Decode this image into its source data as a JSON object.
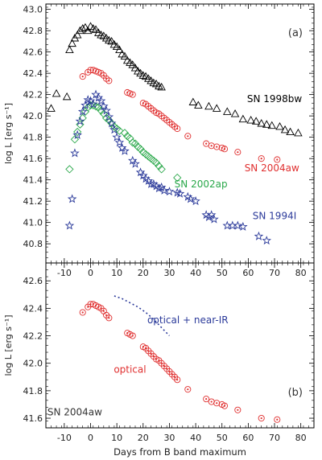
{
  "chart_data": [
    {
      "panel": "(a)",
      "type": "scatter",
      "xlim": [
        -17,
        85
      ],
      "ylim": [
        40.62,
        43.05
      ],
      "yticks": [
        40.8,
        41.0,
        41.2,
        41.4,
        41.6,
        41.8,
        42.0,
        42.2,
        42.4,
        42.6,
        42.8,
        43.0
      ],
      "xticks": [
        -10,
        0,
        10,
        20,
        30,
        40,
        50,
        60,
        70,
        80
      ],
      "ylabel": "log L [erg s⁻¹]",
      "panel_label": "(a)",
      "series": [
        {
          "name": "SN 1998bw",
          "marker": "triangle",
          "color": "#000000",
          "x": [
            -15,
            -13,
            -9,
            -8,
            -7,
            -6,
            -5,
            -4,
            -3,
            -2,
            -1,
            0,
            1,
            2,
            3,
            4,
            5,
            6,
            7,
            8,
            9,
            10,
            11,
            12,
            13,
            14,
            15,
            16,
            17,
            18,
            19,
            20,
            21,
            22,
            23,
            24,
            25,
            26,
            27,
            39,
            41,
            45,
            48,
            52,
            55,
            58,
            61,
            63,
            65,
            67,
            69,
            72,
            74,
            76,
            79
          ],
          "y": [
            42.07,
            42.21,
            42.18,
            42.62,
            42.68,
            42.73,
            42.76,
            42.8,
            42.82,
            42.83,
            42.8,
            42.84,
            42.82,
            42.81,
            42.78,
            42.76,
            42.75,
            42.73,
            42.71,
            42.7,
            42.67,
            42.65,
            42.62,
            42.58,
            42.56,
            42.52,
            42.5,
            42.48,
            42.45,
            42.42,
            42.4,
            42.38,
            42.37,
            42.35,
            42.33,
            42.31,
            42.3,
            42.28,
            42.27,
            42.13,
            42.1,
            42.09,
            42.07,
            42.04,
            42.02,
            41.97,
            41.96,
            41.95,
            41.93,
            41.92,
            41.91,
            41.9,
            41.87,
            41.85,
            41.84
          ]
        },
        {
          "name": "SN 2004aw",
          "marker": "circle-dot",
          "color": "#e03030",
          "x": [
            -3,
            -1,
            0,
            1,
            2,
            3,
            4,
            5,
            6,
            7,
            14,
            15,
            16,
            20,
            21,
            22,
            23,
            24,
            25,
            26,
            27,
            28,
            29,
            30,
            31,
            32,
            33,
            37,
            44,
            46,
            48,
            50,
            51,
            56,
            65,
            71
          ],
          "y": [
            42.37,
            42.41,
            42.43,
            42.43,
            42.42,
            42.41,
            42.4,
            42.38,
            42.35,
            42.33,
            42.22,
            42.21,
            42.2,
            42.12,
            42.11,
            42.09,
            42.07,
            42.05,
            42.03,
            42.02,
            42.0,
            41.98,
            41.96,
            41.94,
            41.92,
            41.9,
            41.88,
            41.81,
            41.74,
            41.72,
            41.71,
            41.7,
            41.69,
            41.66,
            41.6,
            41.59
          ]
        },
        {
          "name": "SN 2002ap",
          "marker": "diamond",
          "color": "#2aa84a",
          "x": [
            -8,
            -6,
            -5,
            -4,
            -3,
            -2,
            -1,
            0,
            1,
            2,
            3,
            4,
            5,
            6,
            7,
            8,
            9,
            10,
            11,
            13,
            14,
            15,
            16,
            17,
            18,
            19,
            20,
            21,
            22,
            23,
            24,
            25,
            26,
            27,
            33
          ],
          "y": [
            41.5,
            41.78,
            41.85,
            41.92,
            41.98,
            42.04,
            42.08,
            42.1,
            42.1,
            42.09,
            42.08,
            42.05,
            42.02,
            41.98,
            41.96,
            41.93,
            41.9,
            41.88,
            41.86,
            41.84,
            41.81,
            41.79,
            41.75,
            41.74,
            41.71,
            41.69,
            41.66,
            41.64,
            41.62,
            41.6,
            41.58,
            41.56,
            41.53,
            41.5,
            41.42
          ]
        },
        {
          "name": "SN 1994I",
          "marker": "star",
          "color": "#2b3a9a",
          "x": [
            -8,
            -7,
            -6,
            -5,
            -4,
            -3,
            -2,
            -1,
            0,
            1,
            2,
            3,
            4,
            5,
            6,
            7,
            8,
            9,
            10,
            11,
            12,
            13,
            16,
            17,
            19,
            20,
            21,
            22,
            23,
            24,
            25,
            26,
            27,
            28,
            30,
            33,
            34,
            37,
            38,
            40,
            44,
            45,
            46,
            47,
            52,
            54,
            56,
            58,
            64,
            67
          ],
          "y": [
            40.97,
            41.22,
            41.65,
            41.82,
            41.95,
            42.04,
            42.1,
            42.15,
            42.14,
            42.11,
            42.2,
            42.17,
            42.14,
            42.09,
            42.05,
            41.99,
            41.93,
            41.87,
            41.8,
            41.75,
            41.7,
            41.67,
            41.58,
            41.55,
            41.47,
            41.44,
            41.41,
            41.39,
            41.36,
            41.36,
            41.34,
            41.32,
            41.33,
            41.3,
            41.29,
            41.28,
            41.27,
            41.24,
            41.22,
            41.2,
            41.07,
            41.05,
            41.07,
            41.03,
            40.97,
            40.97,
            40.97,
            40.96,
            40.87,
            40.83
          ]
        }
      ],
      "annotations": [
        {
          "text": "SN 1998bw",
          "x": 70,
          "y": 42.13,
          "color": "#000000"
        },
        {
          "text": "SN 2004aw",
          "x": 69,
          "y": 41.48,
          "color": "#e03030"
        },
        {
          "text": "SN 2002ap",
          "x": 42,
          "y": 41.33,
          "color": "#2aa84a"
        },
        {
          "text": "SN 1994I",
          "x": 70,
          "y": 41.03,
          "color": "#2b3a9a"
        }
      ]
    },
    {
      "panel": "(b)",
      "type": "scatter",
      "xlim": [
        -17,
        85
      ],
      "ylim": [
        41.53,
        42.73
      ],
      "yticks": [
        41.6,
        41.8,
        42.0,
        42.2,
        42.4,
        42.6
      ],
      "xticks": [
        -10,
        0,
        10,
        20,
        30,
        40,
        50,
        60,
        70,
        80
      ],
      "xlabel": "Days from B band maximum",
      "ylabel": "log L [erg s⁻¹]",
      "panel_label": "(b)",
      "series": [
        {
          "name": "optical",
          "marker": "circle-dot",
          "color": "#e03030",
          "x": [
            -3,
            -1,
            0,
            1,
            2,
            3,
            4,
            5,
            6,
            7,
            14,
            15,
            16,
            20,
            21,
            22,
            23,
            24,
            25,
            26,
            27,
            28,
            29,
            30,
            31,
            32,
            33,
            37,
            44,
            46,
            48,
            50,
            51,
            56,
            65,
            71
          ],
          "y": [
            42.37,
            42.41,
            42.43,
            42.43,
            42.42,
            42.41,
            42.4,
            42.38,
            42.35,
            42.33,
            42.22,
            42.21,
            42.2,
            42.12,
            42.11,
            42.09,
            42.07,
            42.05,
            42.03,
            42.02,
            42.0,
            41.98,
            41.96,
            41.94,
            41.92,
            41.9,
            41.88,
            41.81,
            41.74,
            41.72,
            41.71,
            41.7,
            41.69,
            41.66,
            41.6,
            41.59
          ]
        },
        {
          "name": "optical + near-IR",
          "marker": "dotted-line",
          "color": "#2b3a9a",
          "x": [
            9,
            12,
            15,
            18,
            21,
            24,
            27,
            30
          ],
          "y": [
            42.49,
            42.47,
            42.44,
            42.41,
            42.37,
            42.32,
            42.26,
            42.2
          ]
        }
      ],
      "annotations": [
        {
          "text": "optical + near-IR",
          "x": 37,
          "y": 42.29,
          "color": "#2b3a9a"
        },
        {
          "text": "optical",
          "x": 15,
          "y": 41.93,
          "color": "#e03030"
        },
        {
          "text": "SN 2004aw",
          "x": -6,
          "y": 41.62,
          "color": "#333333"
        }
      ]
    }
  ]
}
